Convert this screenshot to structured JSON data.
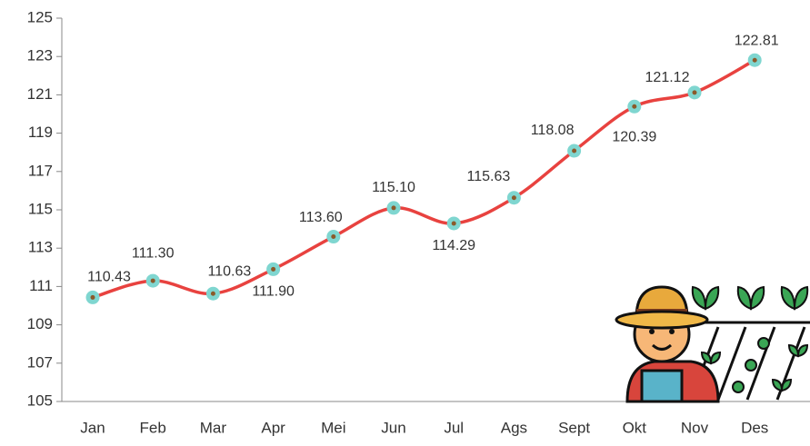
{
  "chart_data": {
    "type": "line",
    "categories": [
      "Jan",
      "Feb",
      "Mar",
      "Apr",
      "Mei",
      "Jun",
      "Jul",
      "Ags",
      "Sept",
      "Okt",
      "Nov",
      "Des"
    ],
    "series": [
      {
        "color": "#e8423f",
        "values": [
          110.43,
          111.3,
          110.63,
          111.9,
          113.6,
          115.1,
          114.29,
          115.63,
          118.08,
          120.39,
          121.12,
          122.81
        ],
        "value_labels": [
          "110.43",
          "111.30",
          "110.63",
          "111.90",
          "113.60",
          "115.10",
          "114.29",
          "115.63",
          "118.08",
          "120.39",
          "121.12",
          "122.81"
        ]
      }
    ],
    "ylim": [
      105,
      125
    ],
    "yticks": [
      105,
      107,
      109,
      111,
      113,
      115,
      117,
      119,
      121,
      123,
      125
    ],
    "grid": false,
    "marker_color": "#7fd6d0"
  }
}
